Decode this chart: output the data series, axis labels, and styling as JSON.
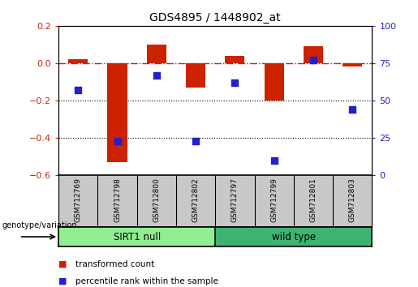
{
  "title": "GDS4895 / 1448902_at",
  "samples": [
    "GSM712769",
    "GSM712798",
    "GSM712800",
    "GSM712802",
    "GSM712797",
    "GSM712799",
    "GSM712801",
    "GSM712803"
  ],
  "groups": [
    {
      "name": "SIRT1 null",
      "count": 4,
      "color": "#90ee90"
    },
    {
      "name": "wild type",
      "count": 4,
      "color": "#3cb371"
    }
  ],
  "transformed_count": [
    0.02,
    -0.53,
    0.1,
    -0.13,
    0.04,
    -0.2,
    0.09,
    -0.02
  ],
  "percentile_rank": [
    57,
    23,
    67,
    23,
    62,
    10,
    77,
    44
  ],
  "ylim_left": [
    -0.6,
    0.2
  ],
  "ylim_right": [
    0,
    100
  ],
  "yticks_left": [
    -0.6,
    -0.4,
    -0.2,
    0.0,
    0.2
  ],
  "yticks_right": [
    0,
    25,
    50,
    75,
    100
  ],
  "bar_color": "#cc2200",
  "dot_color": "#2222cc",
  "hline_color": "#cc2200",
  "dotted_lines": [
    -0.2,
    -0.4
  ],
  "legend_items": [
    {
      "label": "transformed count",
      "color": "#cc2200"
    },
    {
      "label": "percentile rank within the sample",
      "color": "#2222cc"
    }
  ],
  "genotype_label": "genotype/variation",
  "ylabel_left_color": "#cc2200",
  "ylabel_right_color": "#2222cc",
  "group_label_color": "#90ee90",
  "group2_color": "#3cb371",
  "sample_bg_color": "#c8c8c8",
  "bar_width": 0.5,
  "dot_size": 28
}
